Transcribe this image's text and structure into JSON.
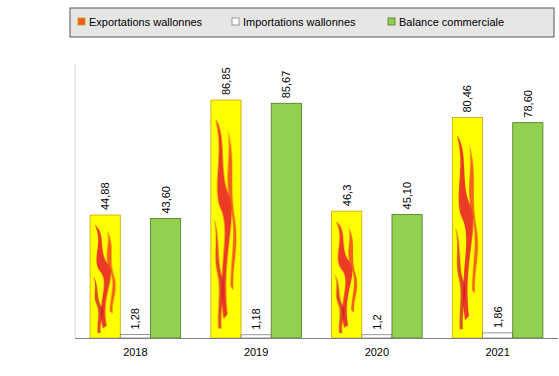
{
  "chart_data": {
    "type": "bar",
    "categories": [
      "2018",
      "2019",
      "2020",
      "2021"
    ],
    "series": [
      {
        "name": "Exportations wallonnes",
        "color": "#FFFF00",
        "values": [
          44.88,
          86.85,
          46.3,
          80.46
        ],
        "value_labels": [
          "44,88",
          "86,85",
          "46,3",
          "80,46"
        ]
      },
      {
        "name": "Importations wallonnes",
        "color": "#FFFFFF",
        "values": [
          1.28,
          1.18,
          1.2,
          1.86
        ],
        "value_labels": [
          "1,28",
          "1,18",
          "1,2",
          "1,86"
        ]
      },
      {
        "name": "Balance commerciale",
        "color": "#92D050",
        "values": [
          43.6,
          85.67,
          45.1,
          78.6
        ],
        "value_labels": [
          "43,60",
          "85,67",
          "45,10",
          "78,60"
        ]
      }
    ],
    "ylim": [
      0,
      100
    ],
    "data_labels": true,
    "tick_labels": "x",
    "grid": false,
    "legend": "top"
  }
}
